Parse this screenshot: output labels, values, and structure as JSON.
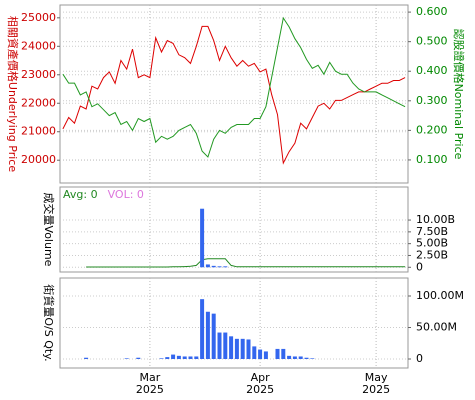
{
  "chart_data": [
    {
      "type": "line",
      "ylabel": "相關資產價格Underlying Price",
      "y2label": "認股證價格Nominal Price",
      "ylim": [
        19200,
        25450
      ],
      "yticks": [
        20000,
        21000,
        22000,
        23000,
        24000,
        25000
      ],
      "ycolor": "#cc0000",
      "y2lim": [
        0.022,
        0.624
      ],
      "y2ticks": [
        {
          "value": 0.1,
          "label": "0.100"
        },
        {
          "value": 0.2,
          "label": "0.200"
        },
        {
          "value": 0.3,
          "label": "0.300"
        },
        {
          "value": 0.4,
          "label": "0.400"
        },
        {
          "value": 0.5,
          "label": "0.500"
        },
        {
          "value": 0.6,
          "label": "0.600"
        }
      ],
      "y2color": "#008800",
      "grid": true,
      "series": [
        {
          "type": "line",
          "color": "#dd0000",
          "axis": "y",
          "values": [
            21100,
            21500,
            21300,
            21900,
            21800,
            22600,
            22500,
            22900,
            23100,
            22700,
            23500,
            23200,
            23900,
            22900,
            23000,
            22900,
            24300,
            23800,
            24200,
            24100,
            23700,
            23600,
            23400,
            24000,
            24700,
            24700,
            24200,
            23500,
            24000,
            23600,
            23300,
            23500,
            23300,
            23400,
            23100,
            23200,
            22300,
            21600,
            19900,
            20300,
            20600,
            21300,
            21100,
            21500,
            21900,
            22000,
            21800,
            22100,
            22100,
            22200,
            22300,
            22400,
            22400,
            22500,
            22600,
            22700,
            22700,
            22800,
            22800,
            22900
          ]
        },
        {
          "type": "line",
          "color": "#229922",
          "axis": "y2",
          "values": [
            0.39,
            0.36,
            0.36,
            0.32,
            0.33,
            0.28,
            0.29,
            0.27,
            0.25,
            0.26,
            0.22,
            0.23,
            0.2,
            0.24,
            0.23,
            0.24,
            0.16,
            0.18,
            0.17,
            0.18,
            0.2,
            0.21,
            0.22,
            0.19,
            0.13,
            0.11,
            0.17,
            0.2,
            0.19,
            0.21,
            0.22,
            0.22,
            0.22,
            0.24,
            0.24,
            0.28,
            0.38,
            0.48,
            0.58,
            0.55,
            0.51,
            0.48,
            0.44,
            0.41,
            0.42,
            0.39,
            0.43,
            0.4,
            0.39,
            0.39,
            0.36,
            0.34,
            0.33,
            0.33,
            0.33,
            0.32,
            0.31,
            0.3,
            0.29,
            0.28
          ]
        }
      ]
    },
    {
      "type": "bar",
      "ylabel": "成交量Volume",
      "ylim": [
        -1000000000,
        17000000000
      ],
      "y2ticks": [
        0,
        {
          "value": 2500000000,
          "label": "2.50B"
        },
        {
          "value": 5000000000,
          "label": "5.00B"
        },
        {
          "value": 7500000000,
          "label": "7.50B"
        },
        {
          "value": 10000000000,
          "label": "10.00B"
        }
      ],
      "grid": true,
      "series": [
        {
          "name": "Avg: 0",
          "type": "line",
          "color": "#228822",
          "values": [
            null,
            null,
            null,
            null,
            50000000,
            50000000,
            50000000,
            50000000,
            50000000,
            50000000,
            50000000,
            50000000,
            50000000,
            50000000,
            50000000,
            50000000,
            50000000,
            50000000,
            50000000,
            100000000,
            100000000,
            150000000,
            200000000,
            400000000,
            1600000000,
            1800000000,
            1800000000,
            1800000000,
            1800000000,
            400000000,
            100000000,
            100000000,
            100000000,
            100000000,
            100000000,
            100000000,
            100000000,
            100000000,
            100000000,
            100000000,
            100000000,
            100000000,
            100000000,
            100000000,
            100000000,
            100000000,
            100000000,
            100000000,
            100000000,
            100000000,
            100000000,
            100000000,
            100000000,
            100000000,
            100000000,
            100000000,
            100000000,
            100000000,
            100000000,
            100000000
          ]
        },
        {
          "name": "VOL: 0",
          "type": "bar",
          "color": "#3366ee",
          "legend_color": "#dd77dd",
          "values": [
            0,
            0,
            0,
            0,
            0,
            0,
            0,
            0,
            0,
            0,
            0,
            0,
            0,
            0,
            0,
            0,
            0,
            0,
            0,
            0,
            0,
            0,
            0,
            0,
            12400000000,
            600000000,
            300000000,
            200000000,
            200000000,
            0,
            0,
            0,
            0,
            0,
            0,
            0,
            0,
            0,
            0,
            0,
            0,
            0,
            0,
            0,
            0,
            0,
            0,
            0,
            0,
            0,
            0,
            0,
            0,
            0,
            0,
            0,
            0,
            0,
            0,
            0
          ]
        }
      ]
    },
    {
      "type": "bar",
      "ylabel": "街貨量O/S Qty.",
      "ylim": [
        -14300000,
        128600000
      ],
      "y2ticks": [
        0,
        {
          "value": 50000000,
          "label": "50.00M"
        },
        {
          "value": 100000000,
          "label": "100.00M"
        }
      ],
      "grid": true,
      "categories": [
        null,
        null,
        null,
        null,
        null,
        null,
        null,
        null,
        null,
        null,
        null,
        null,
        null,
        null,
        null,
        "Mar\n2025",
        null,
        null,
        null,
        null,
        null,
        null,
        null,
        null,
        null,
        null,
        null,
        null,
        null,
        null,
        null,
        null,
        null,
        null,
        "Apr\n2025",
        null,
        null,
        null,
        null,
        null,
        null,
        null,
        null,
        null,
        null,
        null,
        null,
        null,
        null,
        null,
        null,
        null,
        null,
        null,
        "May\n2025",
        null,
        null,
        null,
        null,
        null
      ],
      "series": [
        {
          "type": "bar",
          "color": "#3366ee",
          "values": [
            0,
            0,
            0,
            0,
            2000000,
            0,
            0,
            0,
            0,
            0,
            0,
            1000000,
            0,
            2000000,
            0,
            0,
            0,
            1000000,
            3000000,
            7000000,
            5000000,
            4000000,
            4000000,
            4000000,
            95000000,
            75000000,
            72000000,
            42000000,
            42000000,
            36000000,
            32000000,
            32000000,
            31000000,
            20000000,
            15000000,
            12000000,
            0,
            16000000,
            16000000,
            5000000,
            4000000,
            4000000,
            2000000,
            1000000,
            0,
            0,
            0,
            0,
            0,
            0,
            0,
            0,
            0,
            0,
            0,
            0,
            0,
            0,
            0,
            0
          ]
        }
      ]
    }
  ]
}
